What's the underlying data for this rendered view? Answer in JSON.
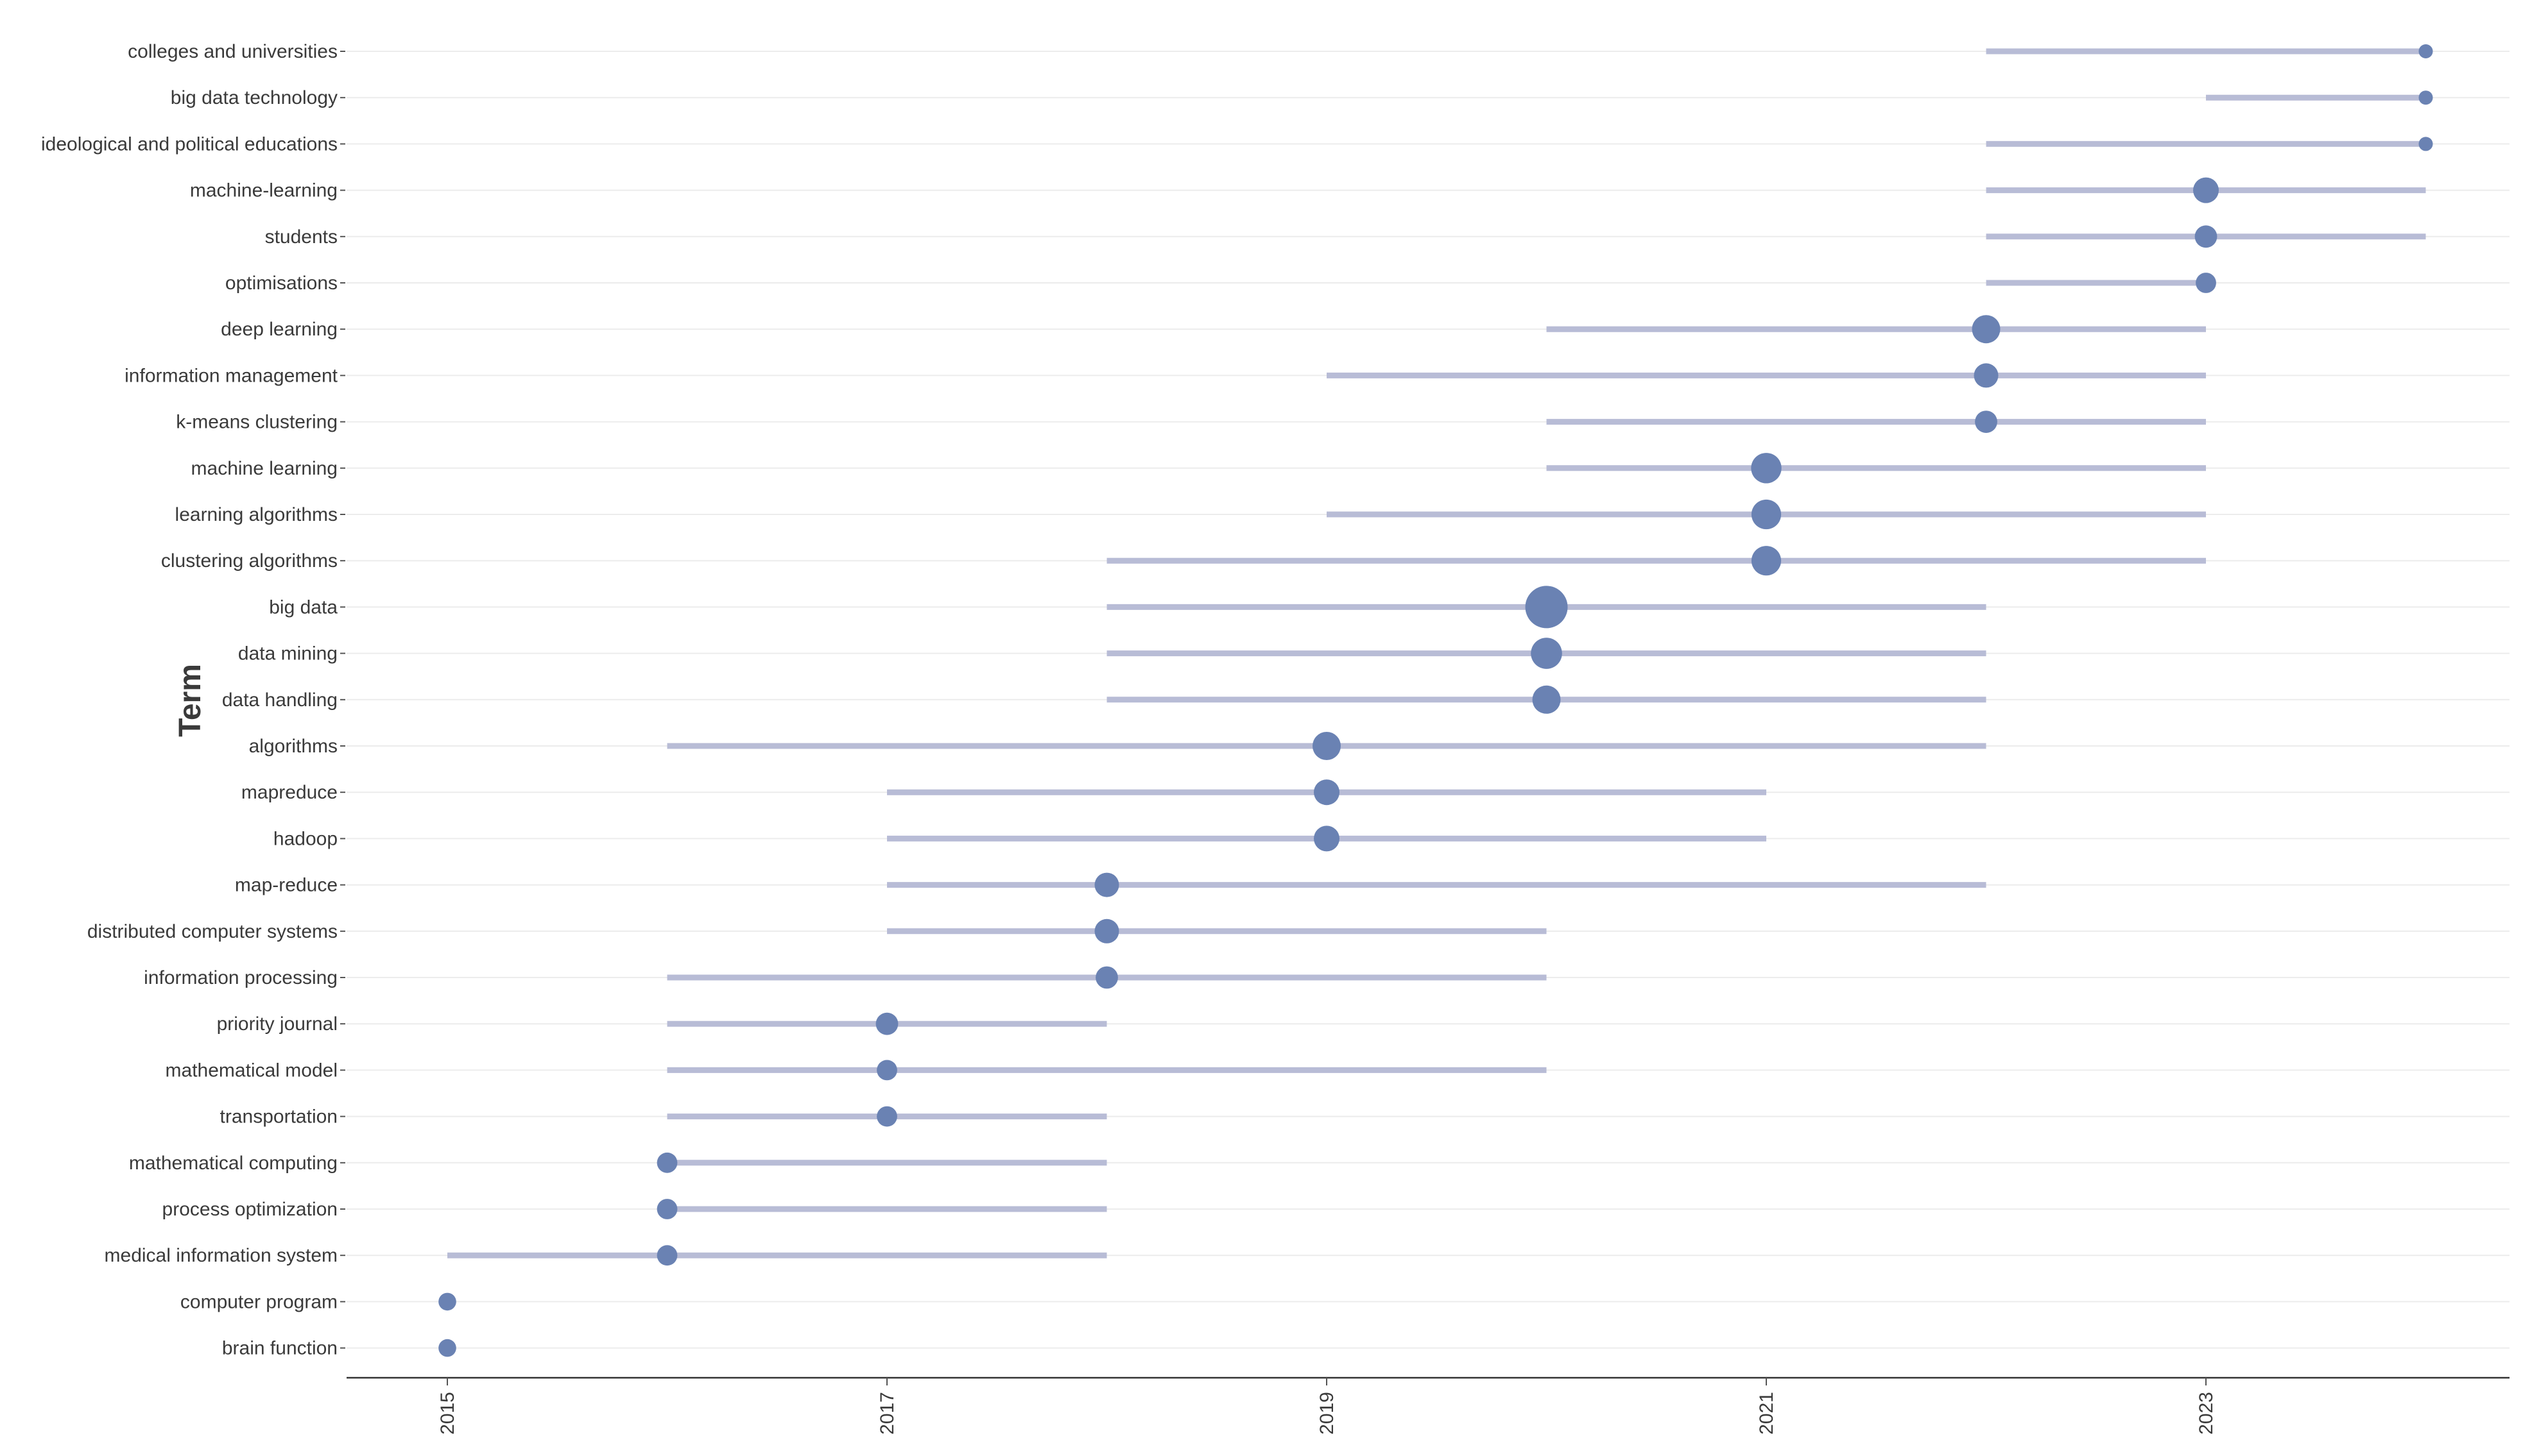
{
  "chart_data": {
    "type": "scatter",
    "ylabel": "Term",
    "xlabel": "",
    "xlim": [
      2014.77,
      2024.3
    ],
    "x_ticks": [
      2015,
      2017,
      2019,
      2021,
      2023
    ],
    "grid": "horizontal",
    "size_encoding": "point size varies by term",
    "colors": {
      "point": "#6a82b3",
      "range": "#b8bcd6"
    },
    "terms": [
      {
        "term": "colleges and universities",
        "start": 2022,
        "end": 2024,
        "year": 2024,
        "size": 1
      },
      {
        "term": "big data technology",
        "start": 2023,
        "end": 2024,
        "year": 2024,
        "size": 1
      },
      {
        "term": "ideological and political educations",
        "start": 2022,
        "end": 2024,
        "year": 2024,
        "size": 1
      },
      {
        "term": "machine-learning",
        "start": 2022,
        "end": 2024,
        "year": 2023,
        "size": 2
      },
      {
        "term": "students",
        "start": 2022,
        "end": 2024,
        "year": 2023,
        "size": 1.5
      },
      {
        "term": "optimisations",
        "start": 2022,
        "end": 2023,
        "year": 2023,
        "size": 1.3
      },
      {
        "term": "deep learning",
        "start": 2020,
        "end": 2023,
        "year": 2022,
        "size": 2.5
      },
      {
        "term": "information management",
        "start": 2019,
        "end": 2023,
        "year": 2022,
        "size": 1.8
      },
      {
        "term": "k-means clustering",
        "start": 2020,
        "end": 2023,
        "year": 2022,
        "size": 1.5
      },
      {
        "term": "machine learning",
        "start": 2020,
        "end": 2023,
        "year": 2021,
        "size": 3
      },
      {
        "term": "learning algorithms",
        "start": 2019,
        "end": 2023,
        "year": 2021,
        "size": 2.8
      },
      {
        "term": "clustering algorithms",
        "start": 2018,
        "end": 2023,
        "year": 2021,
        "size": 2.8
      },
      {
        "term": "big data",
        "start": 2018,
        "end": 2022,
        "year": 2020,
        "size": 7
      },
      {
        "term": "data mining",
        "start": 2018,
        "end": 2022,
        "year": 2020,
        "size": 3.2
      },
      {
        "term": "data handling",
        "start": 2018,
        "end": 2022,
        "year": 2020,
        "size": 2.5
      },
      {
        "term": "algorithms",
        "start": 2016,
        "end": 2022,
        "year": 2019,
        "size": 2.5
      },
      {
        "term": "mapreduce",
        "start": 2017,
        "end": 2021,
        "year": 2019,
        "size": 2
      },
      {
        "term": "hadoop",
        "start": 2017,
        "end": 2021,
        "year": 2019,
        "size": 2
      },
      {
        "term": "map-reduce",
        "start": 2017,
        "end": 2022,
        "year": 2018,
        "size": 1.8
      },
      {
        "term": "distributed computer systems",
        "start": 2017,
        "end": 2020,
        "year": 2018,
        "size": 1.8
      },
      {
        "term": "information processing",
        "start": 2016,
        "end": 2020,
        "year": 2018,
        "size": 1.5
      },
      {
        "term": "priority journal",
        "start": 2016,
        "end": 2018,
        "year": 2017,
        "size": 1.5
      },
      {
        "term": "mathematical model",
        "start": 2016,
        "end": 2020,
        "year": 2017,
        "size": 1.3
      },
      {
        "term": "transportation",
        "start": 2016,
        "end": 2018,
        "year": 2017,
        "size": 1.3
      },
      {
        "term": "mathematical computing",
        "start": 2016,
        "end": 2018,
        "year": 2016,
        "size": 1.3
      },
      {
        "term": "process optimization",
        "start": 2016,
        "end": 2018,
        "year": 2016,
        "size": 1.3
      },
      {
        "term": "medical information system",
        "start": 2015,
        "end": 2018,
        "year": 2016,
        "size": 1.3
      },
      {
        "term": "computer program",
        "start": 2015,
        "end": 2015,
        "year": 2015,
        "size": 1.1
      },
      {
        "term": "brain function",
        "start": 2015,
        "end": 2015,
        "year": 2015,
        "size": 1.1
      }
    ]
  }
}
